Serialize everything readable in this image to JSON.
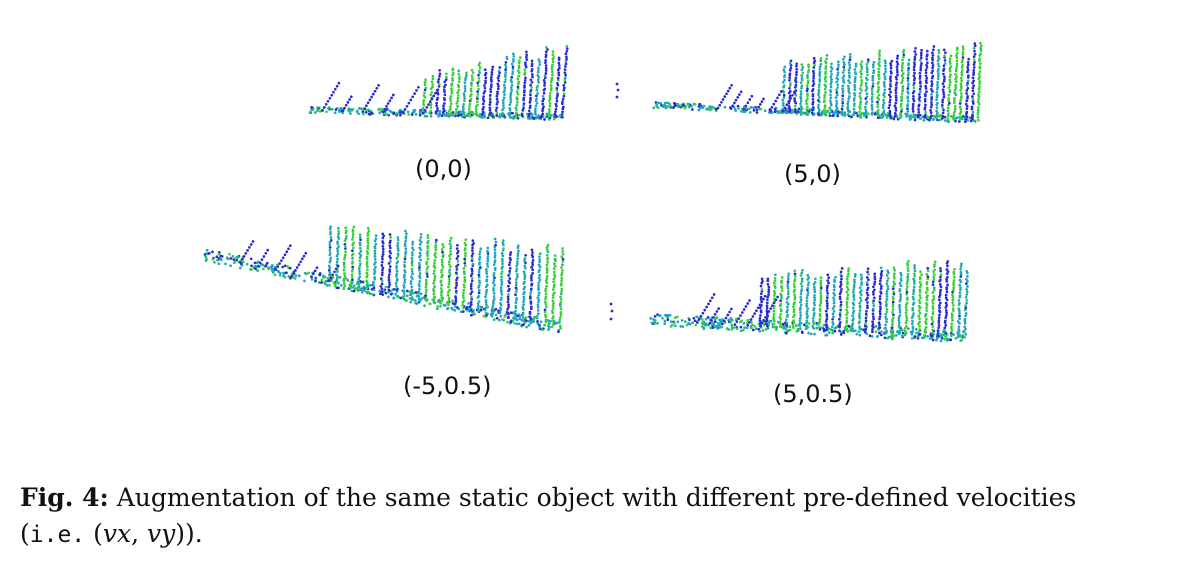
{
  "panels": [
    {
      "label": "(0,0)"
    },
    {
      "label": "(5,0)"
    },
    {
      "label": "(-5,0.5)"
    },
    {
      "label": "(5,0.5)"
    }
  ],
  "caption": {
    "fig_label": "Fig. 4:",
    "text": "Augmentation of the same static object with different pre-defined velocities",
    "line2_open": "(",
    "ie": "i.e.",
    "vector_open": "(",
    "vx": "vx",
    "comma": ", ",
    "vy": "vy",
    "vector_close": ")",
    "line2_close": ")."
  },
  "colors": {
    "dark": "#2a2ad0",
    "mid": "#20a8b8",
    "light": "#38d038",
    "text": "#111111"
  }
}
